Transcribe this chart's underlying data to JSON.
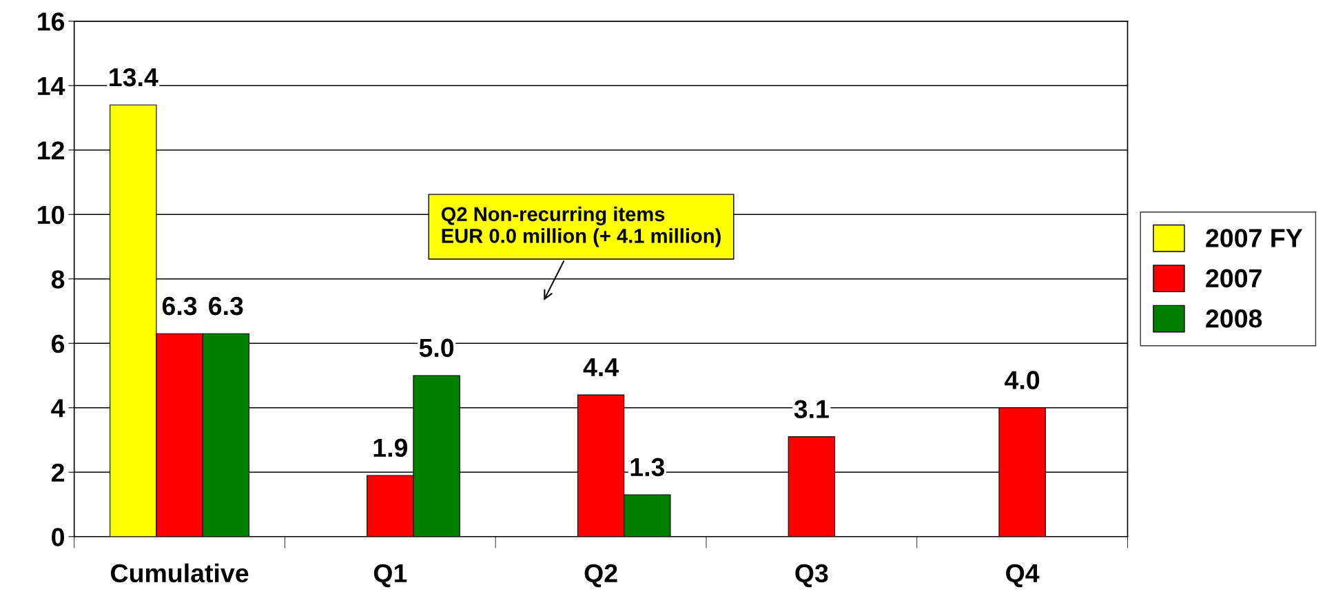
{
  "chart_data": {
    "type": "bar",
    "categories": [
      "Cumulative",
      "Q1",
      "Q2",
      "Q3",
      "Q4"
    ],
    "series": [
      {
        "name": "2007 FY",
        "color": "#ffff00",
        "values": [
          13.4,
          null,
          null,
          null,
          null
        ],
        "value_labels": [
          "13.4",
          null,
          null,
          null,
          null
        ]
      },
      {
        "name": "2007",
        "color": "#ff0000",
        "values": [
          6.3,
          1.9,
          4.4,
          3.1,
          4.0
        ],
        "value_labels": [
          "6.3",
          "1.9",
          "4.4",
          "3.1",
          "4.0"
        ]
      },
      {
        "name": "2008",
        "color": "#008000",
        "values": [
          6.3,
          5.0,
          1.3,
          null,
          null
        ],
        "value_labels": [
          "6.3",
          "5.0",
          "1.3",
          null,
          null
        ]
      }
    ],
    "ylim": [
      0,
      16
    ],
    "yticks": [
      0,
      2,
      4,
      6,
      8,
      10,
      12,
      14,
      16
    ],
    "grid": "y",
    "legend": "right",
    "annotations": [
      "Q2 Non-recurring items\nEUR 0.0 million (+ 4.1 million)"
    ]
  }
}
